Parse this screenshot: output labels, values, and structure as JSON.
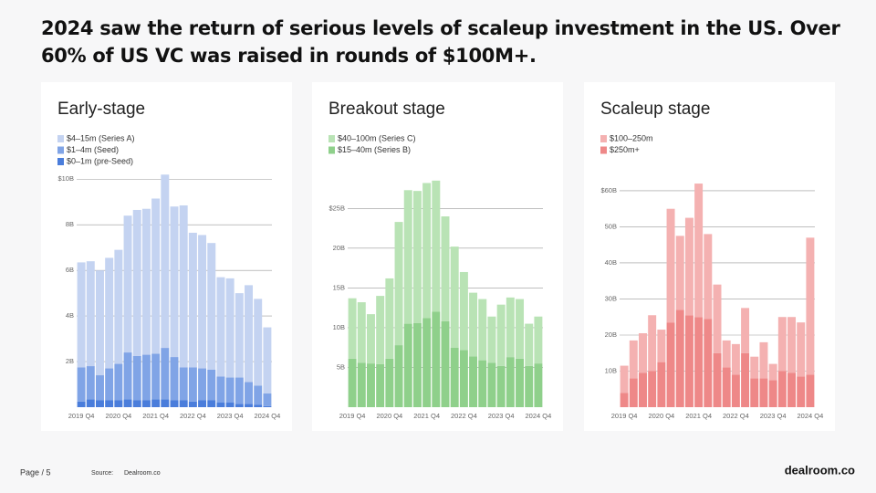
{
  "title": "2024 saw the return of serious levels of scaleup investment in the US. Over 60% of US VC was raised in rounds of $100M+.",
  "chart_data": [
    {
      "type": "bar",
      "stacked": true,
      "title": "Early-stage",
      "categories": [
        "2019 Q4",
        null,
        null,
        null,
        "2020 Q4",
        null,
        null,
        null,
        "2021 Q4",
        null,
        null,
        null,
        "2022 Q4",
        null,
        null,
        null,
        "2023 Q4",
        null,
        null,
        null,
        "2024 Q4"
      ],
      "series": [
        {
          "name": "$0–1m (pre-Seed)",
          "color": "#4a7ddb",
          "values": [
            0.25,
            0.35,
            0.3,
            0.3,
            0.3,
            0.35,
            0.3,
            0.3,
            0.35,
            0.35,
            0.3,
            0.3,
            0.25,
            0.3,
            0.3,
            0.2,
            0.2,
            0.15,
            0.15,
            0.1,
            0.05
          ]
        },
        {
          "name": "$1–4m (Seed)",
          "color": "#80a4e6",
          "values": [
            1.5,
            1.45,
            1.1,
            1.4,
            1.6,
            2.05,
            1.95,
            2.0,
            2.0,
            2.25,
            1.9,
            1.45,
            1.5,
            1.4,
            1.35,
            1.15,
            1.1,
            1.15,
            0.95,
            0.85,
            0.55
          ]
        },
        {
          "name": "$4–15m (Series A)",
          "color": "#c4d3f1",
          "values": [
            4.6,
            4.6,
            4.6,
            4.85,
            5.0,
            6.0,
            6.4,
            6.4,
            6.8,
            7.6,
            6.6,
            7.1,
            5.9,
            5.85,
            5.55,
            4.35,
            4.35,
            3.7,
            4.25,
            3.8,
            2.9
          ]
        }
      ],
      "ylim": [
        0,
        10.25
      ],
      "yticks": [
        {
          "value": 2,
          "label": "2B"
        },
        {
          "value": 4,
          "label": "4B"
        },
        {
          "value": 6,
          "label": "6B"
        },
        {
          "value": 8,
          "label": "8B"
        },
        {
          "value": 10,
          "label": "$10B"
        }
      ],
      "grid": true
    },
    {
      "type": "bar",
      "stacked": true,
      "title": "Breakout stage",
      "categories": [
        "2019 Q4",
        null,
        null,
        null,
        "2020 Q4",
        null,
        null,
        null,
        "2021 Q4",
        null,
        null,
        null,
        "2022 Q4",
        null,
        null,
        null,
        "2023 Q4",
        null,
        null,
        null,
        "2024 Q4"
      ],
      "series": [
        {
          "name": "$15–40m (Series B)",
          "color": "#8fd08b",
          "values": [
            6.1,
            5.6,
            5.5,
            5.4,
            6.1,
            7.8,
            10.5,
            10.6,
            11.2,
            12.0,
            10.8,
            7.5,
            7.2,
            6.4,
            5.9,
            5.6,
            5.2,
            6.3,
            6.1,
            5.2,
            5.5
          ]
        },
        {
          "name": "$40–100m (Series C)",
          "color": "#b9e3b5",
          "values": [
            7.6,
            7.6,
            6.2,
            8.6,
            10.1,
            15.5,
            16.8,
            16.6,
            17.0,
            16.5,
            13.2,
            12.7,
            9.8,
            8.0,
            7.7,
            5.8,
            7.7,
            7.5,
            7.5,
            5.3,
            5.9
          ]
        }
      ],
      "ylim": [
        0,
        29.4
      ],
      "yticks": [
        {
          "value": 5,
          "label": "5B"
        },
        {
          "value": 10,
          "label": "10B"
        },
        {
          "value": 15,
          "label": "15B"
        },
        {
          "value": 20,
          "label": "20B"
        },
        {
          "value": 25,
          "label": "$25B"
        }
      ],
      "grid": true
    },
    {
      "type": "bar",
      "stacked": true,
      "title": "Scaleup stage",
      "categories": [
        "2019 Q4",
        null,
        null,
        null,
        "2020 Q4",
        null,
        null,
        null,
        "2021 Q4",
        null,
        null,
        null,
        "2022 Q4",
        null,
        null,
        null,
        "2023 Q4",
        null,
        null,
        null,
        "2024 Q4"
      ],
      "series": [
        {
          "name": "$250m+",
          "color": "#ee8888",
          "values": [
            4,
            8,
            9.5,
            10,
            12.5,
            23.5,
            27,
            25.5,
            25,
            24.5,
            15,
            11,
            9,
            15,
            8,
            8,
            7.5,
            10,
            9.5,
            8.5,
            9
          ]
        },
        {
          "name": "$100–250m",
          "color": "#f4b1b1",
          "values": [
            7.5,
            10.5,
            11,
            15.5,
            9,
            31.5,
            20.5,
            27,
            37,
            23.5,
            19,
            7.5,
            8.5,
            12.5,
            6,
            10,
            4.5,
            15,
            15.5,
            15,
            38
          ]
        }
      ],
      "ylim": [
        0,
        64.8
      ],
      "yticks": [
        {
          "value": 10,
          "label": "10B"
        },
        {
          "value": 20,
          "label": "20B"
        },
        {
          "value": 30,
          "label": "30B"
        },
        {
          "value": 40,
          "label": "40B"
        },
        {
          "value": 50,
          "label": "50B"
        },
        {
          "value": 60,
          "label": "$60B"
        }
      ],
      "grid": true
    }
  ],
  "footer": {
    "page": "Page / 5",
    "source_label": "Source:",
    "source": "Dealroom.co",
    "logo": "dealroom.co"
  }
}
